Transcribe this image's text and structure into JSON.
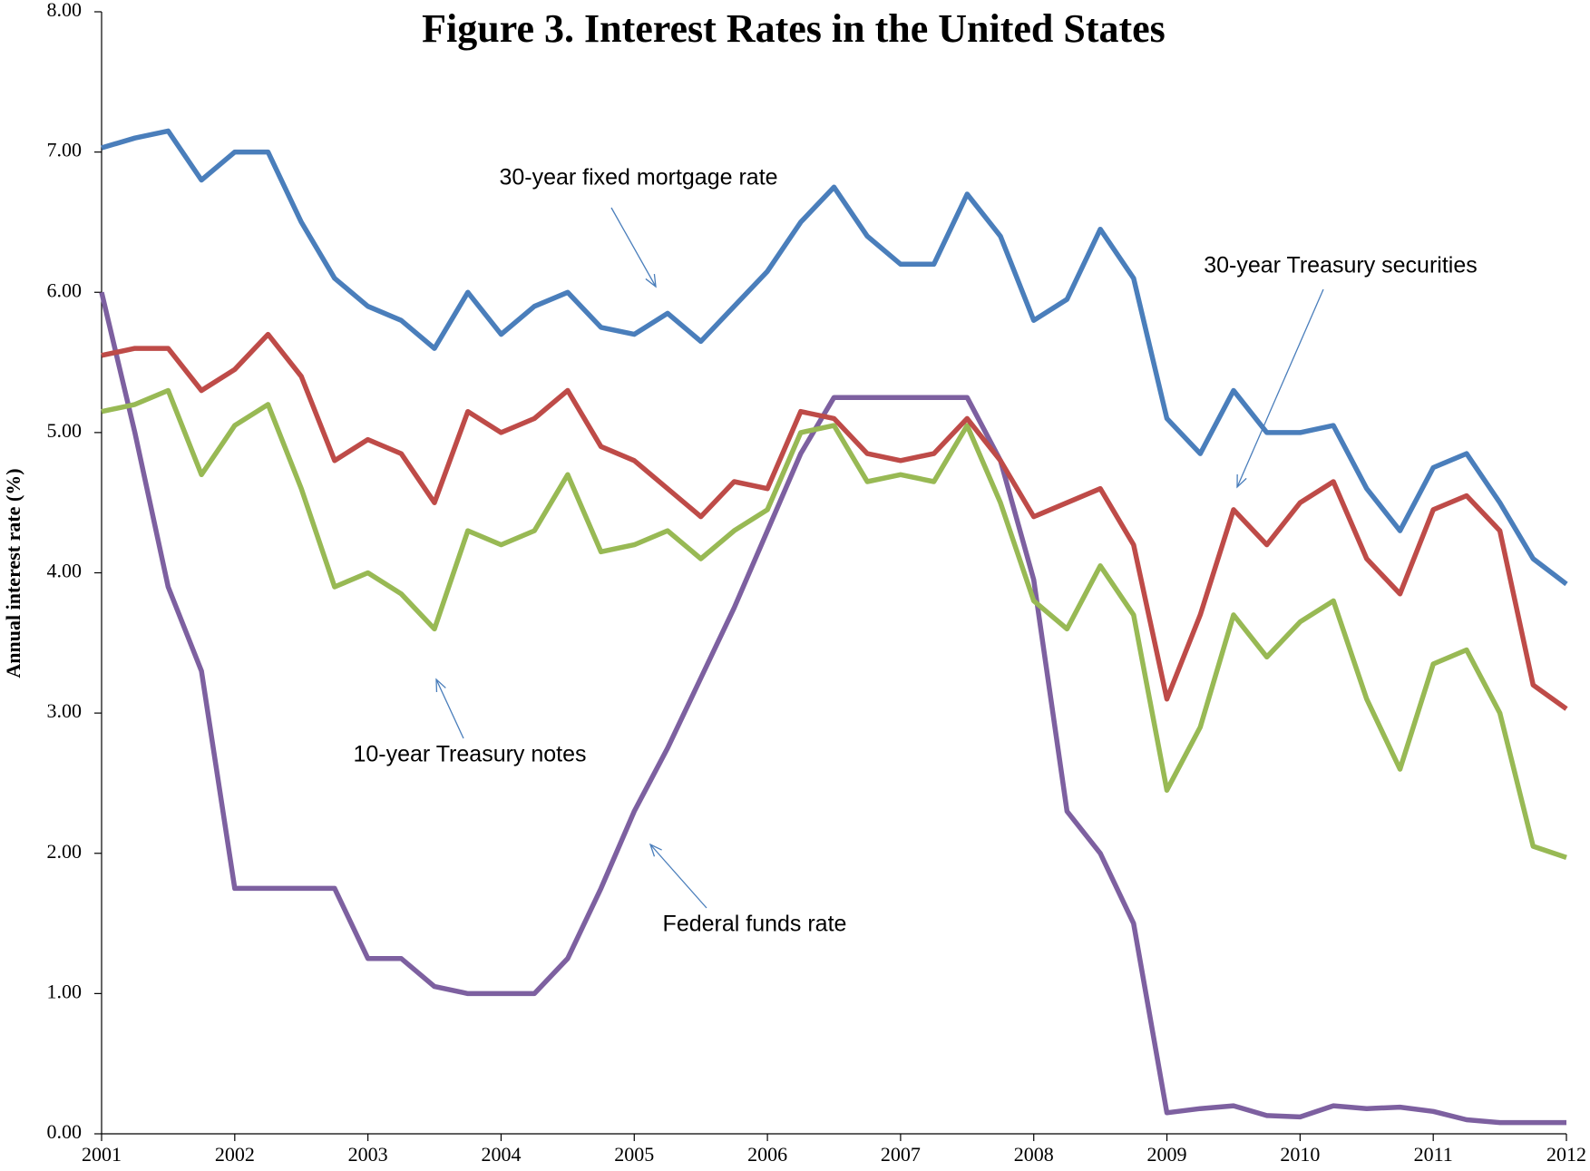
{
  "chart_data": {
    "type": "line",
    "title": "Figure 3.  Interest Rates in the United States",
    "y_label": "Annual interest rate (%)",
    "x": [
      2001,
      2001.25,
      2001.5,
      2001.75,
      2002,
      2002.25,
      2002.5,
      2002.75,
      2003,
      2003.25,
      2003.5,
      2003.75,
      2004,
      2004.25,
      2004.5,
      2004.75,
      2005,
      2005.25,
      2005.5,
      2005.75,
      2006,
      2006.25,
      2006.5,
      2006.75,
      2007,
      2007.25,
      2007.5,
      2007.75,
      2008,
      2008.25,
      2008.5,
      2008.75,
      2009,
      2009.25,
      2009.5,
      2009.75,
      2010,
      2010.25,
      2010.5,
      2010.75,
      2011,
      2011.25,
      2011.5,
      2011.75,
      2012
    ],
    "series": [
      {
        "name": "30-year fixed mortgage rate",
        "color": "#4a7ebb",
        "values": [
          7.03,
          7.1,
          7.15,
          6.8,
          7.0,
          7.0,
          6.5,
          6.1,
          5.9,
          5.8,
          5.6,
          6.0,
          5.7,
          5.9,
          6.0,
          5.75,
          5.7,
          5.85,
          5.65,
          5.9,
          6.15,
          6.5,
          6.75,
          6.4,
          6.2,
          6.2,
          6.7,
          6.4,
          5.8,
          5.95,
          6.45,
          6.1,
          5.1,
          4.85,
          5.3,
          5.0,
          5.0,
          5.05,
          4.6,
          4.3,
          4.75,
          4.85,
          4.5,
          4.1,
          3.92
        ]
      },
      {
        "name": "30-year Treasury securities",
        "color": "#be4b48",
        "values": [
          5.55,
          5.6,
          5.6,
          5.3,
          5.45,
          5.7,
          5.4,
          4.8,
          4.95,
          4.85,
          4.5,
          5.15,
          5.0,
          5.1,
          5.3,
          4.9,
          4.8,
          4.6,
          4.4,
          4.65,
          4.6,
          5.15,
          5.1,
          4.85,
          4.8,
          4.85,
          5.1,
          4.8,
          4.4,
          4.5,
          4.6,
          4.2,
          3.1,
          3.7,
          4.45,
          4.2,
          4.5,
          4.65,
          4.1,
          3.85,
          4.45,
          4.55,
          4.3,
          3.2,
          3.03
        ]
      },
      {
        "name": "10-year Treasury notes",
        "color": "#98b954",
        "values": [
          5.15,
          5.2,
          5.3,
          4.7,
          5.05,
          5.2,
          4.6,
          3.9,
          4.0,
          3.85,
          3.6,
          4.3,
          4.2,
          4.3,
          4.7,
          4.15,
          4.2,
          4.3,
          4.1,
          4.3,
          4.45,
          5.0,
          5.05,
          4.65,
          4.7,
          4.65,
          5.05,
          4.5,
          3.8,
          3.6,
          4.05,
          3.7,
          2.45,
          2.9,
          3.7,
          3.4,
          3.65,
          3.8,
          3.1,
          2.6,
          3.35,
          3.45,
          3.0,
          2.05,
          1.97
        ]
      },
      {
        "name": "Federal funds rate",
        "color": "#7d60a0",
        "values": [
          6.0,
          5.0,
          3.9,
          3.3,
          1.75,
          1.75,
          1.75,
          1.75,
          1.25,
          1.25,
          1.05,
          1.0,
          1.0,
          1.0,
          1.25,
          1.75,
          2.3,
          2.75,
          3.25,
          3.75,
          4.3,
          4.85,
          5.25,
          5.25,
          5.25,
          5.25,
          5.25,
          4.8,
          3.95,
          2.3,
          2.0,
          1.5,
          0.15,
          0.18,
          0.2,
          0.13,
          0.12,
          0.2,
          0.18,
          0.19,
          0.16,
          0.1,
          0.08,
          0.08,
          0.08
        ]
      }
    ],
    "xlim": [
      2001,
      2012
    ],
    "xticks": [
      2001,
      2002,
      2003,
      2004,
      2005,
      2006,
      2007,
      2008,
      2009,
      2010,
      2011,
      2012
    ],
    "ylim": [
      0,
      8
    ],
    "yticks": [
      {
        "value": 0,
        "label": "0.00"
      },
      {
        "value": 1,
        "label": "1.00"
      },
      {
        "value": 2,
        "label": "2.00"
      },
      {
        "value": 3,
        "label": "3.00"
      },
      {
        "value": 4,
        "label": "4.00"
      },
      {
        "value": 5,
        "label": "5.00"
      },
      {
        "value": 6,
        "label": "6.00"
      },
      {
        "value": 7,
        "label": "7.00"
      },
      {
        "value": 8,
        "label": "8.00"
      }
    ],
    "grid": false
  }
}
